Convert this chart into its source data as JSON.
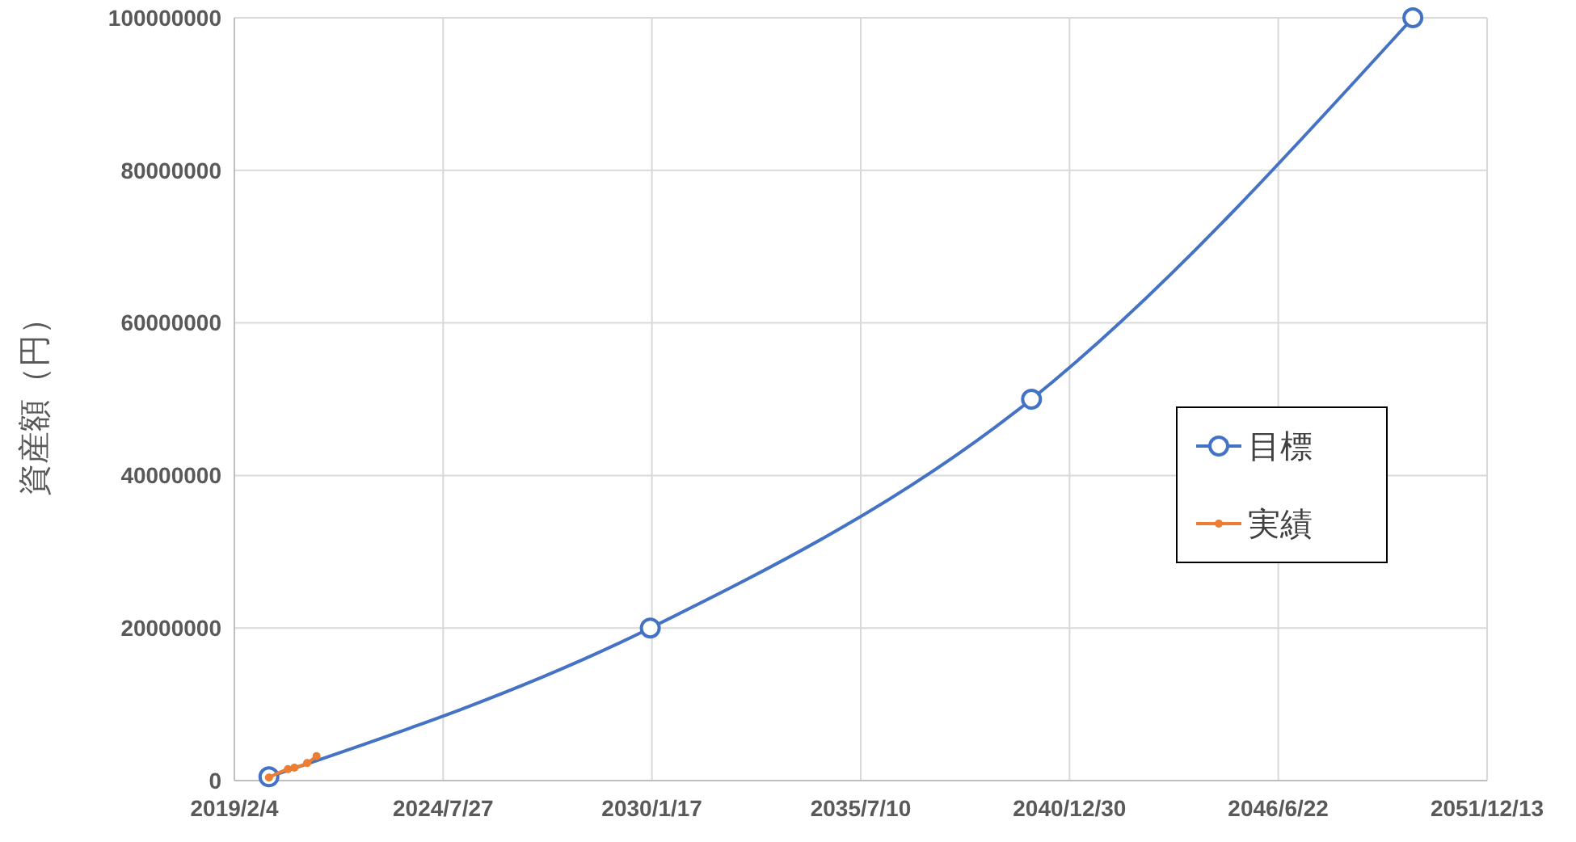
{
  "chart_data": {
    "type": "line",
    "ylabel": "資産額（円）",
    "xlim": [
      "2019-02-04",
      "2051-12-13"
    ],
    "xticks": [
      {
        "value": "2019-02-04",
        "label": "2019/2/4"
      },
      {
        "value": "2024-07-27",
        "label": "2024/7/27"
      },
      {
        "value": "2030-01-17",
        "label": "2030/1/17"
      },
      {
        "value": "2035-07-10",
        "label": "2035/7/10"
      },
      {
        "value": "2040-12-30",
        "label": "2040/12/30"
      },
      {
        "value": "2046-06-22",
        "label": "2046/6/22"
      },
      {
        "value": "2051-12-13",
        "label": "2051/12/13"
      }
    ],
    "ylim": [
      0,
      100000000
    ],
    "yticks": [
      0,
      20000000,
      40000000,
      60000000,
      80000000,
      100000000
    ],
    "grid": true,
    "legend": "right",
    "series": [
      {
        "name": "目標",
        "color": "#4472c4",
        "marker": "circle",
        "x": [
          "2020-01-01",
          "2030-01-01",
          "2040-01-01",
          "2050-01-01"
        ],
        "values": [
          500000,
          20000000,
          50000000,
          100000000
        ]
      },
      {
        "name": "実績",
        "color": "#ed7d31",
        "marker": "dot",
        "x": [
          "2020-01-01",
          "2020-07-01",
          "2020-09-01",
          "2021-01-01",
          "2021-04-01"
        ],
        "values": [
          400000,
          1500000,
          1700000,
          2300000,
          3200000
        ]
      }
    ]
  }
}
